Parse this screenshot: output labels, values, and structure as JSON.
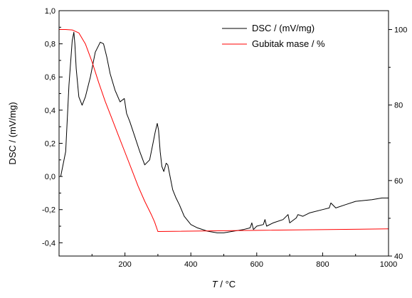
{
  "chart_data": {
    "type": "line",
    "x_axis": {
      "label_italic": "T",
      "label_rest": " / °C",
      "range": [
        0,
        1000
      ],
      "ticks": [
        200,
        400,
        600,
        800,
        1000
      ],
      "tick_labels": [
        "200",
        "400",
        "600",
        "800",
        "1000"
      ]
    },
    "y_axis_left": {
      "label": "DSC / (mV/mg)",
      "range": [
        -0.48,
        1.0
      ],
      "ticks": [
        -0.4,
        -0.2,
        0.0,
        0.2,
        0.4,
        0.6,
        0.8,
        1.0
      ],
      "tick_labels": [
        "-0,4",
        "-0,2",
        "0,0",
        "0,2",
        "0,4",
        "0,6",
        "0,8",
        "1,0"
      ]
    },
    "y_axis_right": {
      "label": "",
      "range": [
        40,
        105
      ],
      "ticks": [
        40,
        60,
        80,
        100
      ],
      "tick_labels": [
        "40",
        "60",
        "80",
        "100"
      ]
    },
    "legend_placement": "top-right",
    "series": [
      {
        "name": "DSC / (mV/mg)",
        "axis": "left",
        "color": "#000000",
        "x": [
          5,
          20,
          30,
          40,
          45,
          48,
          52,
          60,
          70,
          80,
          95,
          110,
          125,
          135,
          145,
          155,
          170,
          185,
          198,
          205,
          215,
          230,
          245,
          260,
          275,
          285,
          292,
          298,
          302,
          307,
          312,
          318,
          325,
          330,
          337,
          345,
          355,
          365,
          380,
          400,
          420,
          450,
          480,
          500,
          530,
          560,
          580,
          585,
          590,
          600,
          620,
          625,
          630,
          650,
          680,
          695,
          700,
          720,
          725,
          740,
          760,
          800,
          820,
          825,
          840,
          870,
          900,
          950,
          980,
          1000
        ],
        "y": [
          0.0,
          0.15,
          0.55,
          0.82,
          0.87,
          0.8,
          0.65,
          0.48,
          0.43,
          0.48,
          0.6,
          0.75,
          0.81,
          0.8,
          0.72,
          0.62,
          0.52,
          0.45,
          0.47,
          0.38,
          0.33,
          0.24,
          0.15,
          0.07,
          0.1,
          0.2,
          0.27,
          0.32,
          0.28,
          0.15,
          0.06,
          0.03,
          0.08,
          0.07,
          0.0,
          -0.08,
          -0.13,
          -0.17,
          -0.24,
          -0.29,
          -0.31,
          -0.33,
          -0.34,
          -0.34,
          -0.33,
          -0.32,
          -0.31,
          -0.28,
          -0.32,
          -0.3,
          -0.29,
          -0.26,
          -0.3,
          -0.28,
          -0.26,
          -0.23,
          -0.28,
          -0.25,
          -0.23,
          -0.24,
          -0.22,
          -0.2,
          -0.19,
          -0.16,
          -0.19,
          -0.17,
          -0.15,
          -0.14,
          -0.13,
          -0.13
        ]
      },
      {
        "name": "Gubitak mase / %",
        "axis": "right",
        "color": "#ff0000",
        "x": [
          0,
          20,
          40,
          60,
          80,
          100,
          120,
          140,
          160,
          180,
          200,
          220,
          240,
          260,
          280,
          290,
          300,
          1000
        ],
        "y": [
          100.0,
          100.0,
          99.9,
          99.1,
          96.2,
          91.5,
          86.0,
          81.0,
          76.5,
          72.0,
          67.5,
          63.0,
          58.5,
          54.5,
          51.0,
          49.0,
          46.5,
          47.2
        ]
      }
    ]
  }
}
